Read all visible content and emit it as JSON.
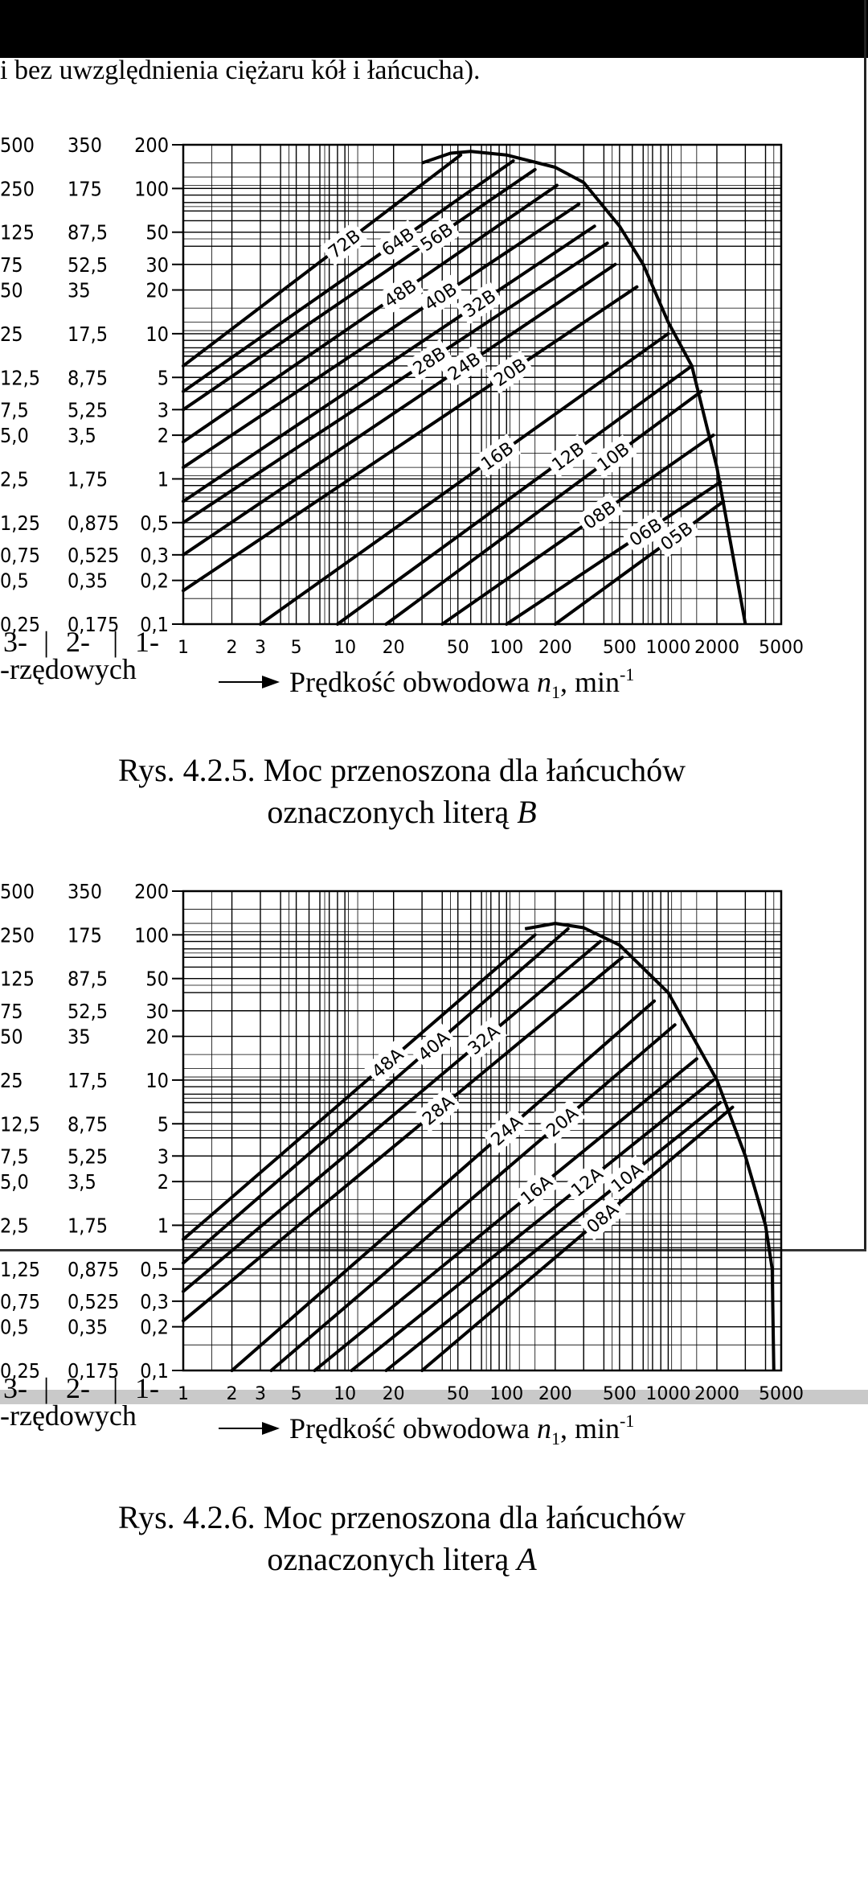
{
  "page": {
    "top_text": "i bez uwzględnienia ciężaru kół i łańcucha)."
  },
  "chart_data": [
    {
      "type": "line",
      "scale": "log-log",
      "caption_line1": "Rys. 4.2.5.  Moc przenoszona dla łańcuchów",
      "caption_line2": "oznaczonych literą ",
      "caption_letter": "B",
      "y_ticks": [
        {
          "v": 200,
          "r2": "350",
          "r3": "500",
          "r1": "200"
        },
        {
          "v": 100,
          "r2": "175",
          "r3": "250",
          "r1": "100"
        },
        {
          "v": 50,
          "r2": "87,5",
          "r3": "125",
          "r1": "50"
        },
        {
          "v": 30,
          "r2": "52,5",
          "r3": "75",
          "r1": "30"
        },
        {
          "v": 20,
          "r2": "35",
          "r3": "50",
          "r1": "20"
        },
        {
          "v": 10,
          "r2": "17,5",
          "r3": "25",
          "r1": "10"
        },
        {
          "v": 5,
          "r2": "8,75",
          "r3": "12,5",
          "r1": "5"
        },
        {
          "v": 3,
          "r2": "5,25",
          "r3": "7,5",
          "r1": "3"
        },
        {
          "v": 2,
          "r2": "3,5",
          "r3": "5,0",
          "r1": "2"
        },
        {
          "v": 1,
          "r2": "1,75",
          "r3": "2,5",
          "r1": "1"
        },
        {
          "v": 0.5,
          "r2": "0,875",
          "r3": "1,25",
          "r1": "0,5"
        },
        {
          "v": 0.3,
          "r2": "0,525",
          "r3": "0,75",
          "r1": "0,3"
        },
        {
          "v": 0.2,
          "r2": "0,35",
          "r3": "0,5",
          "r1": "0,2"
        },
        {
          "v": 0.1,
          "r2": "0,175",
          "r3": "0,25",
          "r1": "0,1"
        }
      ],
      "x_ticks": [
        {
          "v": 1,
          "label": "1"
        },
        {
          "v": 2,
          "label": "2"
        },
        {
          "v": 3,
          "label": "3"
        },
        {
          "v": 5,
          "label": "5"
        },
        {
          "v": 10,
          "label": "10"
        },
        {
          "v": 20,
          "label": "20"
        },
        {
          "v": 50,
          "label": "50"
        },
        {
          "v": 100,
          "label": "100"
        },
        {
          "v": 200,
          "label": "200"
        },
        {
          "v": 500,
          "label": "500"
        },
        {
          "v": 1000,
          "label": "1000"
        },
        {
          "v": 2000,
          "label": "2000"
        },
        {
          "v": 5000,
          "label": "5000"
        }
      ],
      "row_labels": {
        "r3": "3-",
        "r2": "2-",
        "r1": "1-",
        "sep": "|",
        "suffix": "-rzędowych"
      },
      "xlabel": "Prędkość obwodowa  ",
      "xlabel_symbol": "n",
      "xlabel_sub": "1",
      "xlabel_unit": ", min",
      "xlabel_exp": "-1",
      "xlim": [
        1,
        5000
      ],
      "ylim": [
        0.1,
        200
      ],
      "series": [
        {
          "name": "72B",
          "points": [
            [
              1,
              6.0
            ],
            [
              52,
              170
            ]
          ]
        },
        {
          "name": "64B",
          "points": [
            [
              1,
              4.0
            ],
            [
              110,
              155
            ]
          ]
        },
        {
          "name": "56B",
          "points": [
            [
              1,
              3.0
            ],
            [
              150,
              135
            ]
          ]
        },
        {
          "name": "48B",
          "points": [
            [
              1,
              1.8
            ],
            [
              205,
              105
            ]
          ]
        },
        {
          "name": "40B",
          "points": [
            [
              1,
              1.2
            ],
            [
              280,
              78
            ]
          ]
        },
        {
          "name": "32B",
          "points": [
            [
              1,
              0.7
            ],
            [
              350,
              55
            ]
          ]
        },
        {
          "name": "28B",
          "points": [
            [
              1,
              0.5
            ],
            [
              420,
              42
            ]
          ]
        },
        {
          "name": "24B",
          "points": [
            [
              1,
              0.3
            ],
            [
              470,
              30
            ]
          ]
        },
        {
          "name": "20B",
          "points": [
            [
              1,
              0.17
            ],
            [
              640,
              21
            ]
          ]
        },
        {
          "name": "16B",
          "points": [
            [
              3,
              0.1
            ],
            [
              1000,
              10
            ]
          ]
        },
        {
          "name": "12B",
          "points": [
            [
              9,
              0.1
            ],
            [
              1400,
              6.0
            ]
          ]
        },
        {
          "name": "10B",
          "points": [
            [
              18,
              0.1
            ],
            [
              1600,
              4.0
            ]
          ]
        },
        {
          "name": "08B",
          "points": [
            [
              40,
              0.1
            ],
            [
              1900,
              2.0
            ]
          ]
        },
        {
          "name": "06B",
          "points": [
            [
              100,
              0.1
            ],
            [
              2100,
              0.95
            ]
          ]
        },
        {
          "name": "05B",
          "points": [
            [
              200,
              0.1
            ],
            [
              2200,
              0.7
            ]
          ]
        }
      ],
      "envelope": [
        [
          30,
          150
        ],
        [
          45,
          175
        ],
        [
          60,
          180
        ],
        [
          100,
          170
        ],
        [
          200,
          140
        ],
        [
          300,
          110
        ],
        [
          500,
          55
        ],
        [
          700,
          30
        ],
        [
          1000,
          12
        ],
        [
          1400,
          6
        ],
        [
          2000,
          1.2
        ],
        [
          3000,
          0.1
        ]
      ]
    },
    {
      "type": "line",
      "scale": "log-log",
      "caption_line1": "Rys. 4.2.6.  Moc przenoszona dla łańcuchów",
      "caption_line2": "oznaczonych literą ",
      "caption_letter": "A",
      "y_ticks": [
        {
          "v": 200,
          "r2": "350",
          "r3": "500",
          "r1": "200"
        },
        {
          "v": 100,
          "r2": "175",
          "r3": "250",
          "r1": "100"
        },
        {
          "v": 50,
          "r2": "87,5",
          "r3": "125",
          "r1": "50"
        },
        {
          "v": 30,
          "r2": "52,5",
          "r3": "75",
          "r1": "30"
        },
        {
          "v": 20,
          "r2": "35",
          "r3": "50",
          "r1": "20"
        },
        {
          "v": 10,
          "r2": "17,5",
          "r3": "25",
          "r1": "10"
        },
        {
          "v": 5,
          "r2": "8,75",
          "r3": "12,5",
          "r1": "5"
        },
        {
          "v": 3,
          "r2": "5,25",
          "r3": "7,5",
          "r1": "3"
        },
        {
          "v": 2,
          "r2": "3,5",
          "r3": "5,0",
          "r1": "2"
        },
        {
          "v": 1,
          "r2": "1,75",
          "r3": "2,5",
          "r1": "1"
        },
        {
          "v": 0.5,
          "r2": "0,875",
          "r3": "1,25",
          "r1": "0,5"
        },
        {
          "v": 0.3,
          "r2": "0,525",
          "r3": "0,75",
          "r1": "0,3"
        },
        {
          "v": 0.2,
          "r2": "0,35",
          "r3": "0,5",
          "r1": "0,2"
        },
        {
          "v": 0.1,
          "r2": "0,175",
          "r3": "0,25",
          "r1": "0,1"
        }
      ],
      "x_ticks": [
        {
          "v": 1,
          "label": "1"
        },
        {
          "v": 2,
          "label": "2"
        },
        {
          "v": 3,
          "label": "3"
        },
        {
          "v": 5,
          "label": "5"
        },
        {
          "v": 10,
          "label": "10"
        },
        {
          "v": 20,
          "label": "20"
        },
        {
          "v": 50,
          "label": "50"
        },
        {
          "v": 100,
          "label": "100"
        },
        {
          "v": 200,
          "label": "200"
        },
        {
          "v": 500,
          "label": "500"
        },
        {
          "v": 1000,
          "label": "1000"
        },
        {
          "v": 2000,
          "label": "2000"
        },
        {
          "v": 5000,
          "label": "5000"
        }
      ],
      "row_labels": {
        "r3": "3-",
        "r2": "2-",
        "r1": "1-",
        "sep": "|",
        "suffix": "-rzędowych"
      },
      "xlabel": "Prędkość obwodowa  ",
      "xlabel_symbol": "n",
      "xlabel_sub": "1",
      "xlabel_unit": ", min",
      "xlabel_exp": "-1",
      "xlim": [
        1,
        5000
      ],
      "ylim": [
        0.1,
        200
      ],
      "series": [
        {
          "name": "48A",
          "points": [
            [
              1,
              0.8
            ],
            [
              150,
              100
            ]
          ]
        },
        {
          "name": "40A",
          "points": [
            [
              1,
              0.55
            ],
            [
              240,
              110
            ]
          ]
        },
        {
          "name": "32A",
          "points": [
            [
              1,
              0.35
            ],
            [
              380,
              90
            ]
          ]
        },
        {
          "name": "28A",
          "points": [
            [
              1,
              0.22
            ],
            [
              520,
              70
            ]
          ]
        },
        {
          "name": "24A",
          "points": [
            [
              2,
              0.1
            ],
            [
              820,
              35
            ]
          ]
        },
        {
          "name": "20A",
          "points": [
            [
              3.5,
              0.1
            ],
            [
              1100,
              24
            ]
          ]
        },
        {
          "name": "16A",
          "points": [
            [
              6.5,
              0.1
            ],
            [
              1500,
              14
            ]
          ]
        },
        {
          "name": "12A",
          "points": [
            [
              11,
              0.1
            ],
            [
              1900,
              10
            ]
          ]
        },
        {
          "name": "10A",
          "points": [
            [
              18,
              0.1
            ],
            [
              2100,
              7
            ]
          ]
        },
        {
          "name": "08A",
          "points": [
            [
              30,
              0.1
            ],
            [
              2500,
              6.5
            ]
          ]
        }
      ],
      "envelope": [
        [
          130,
          110
        ],
        [
          200,
          120
        ],
        [
          300,
          112
        ],
        [
          500,
          85
        ],
        [
          1000,
          40
        ],
        [
          2000,
          10
        ],
        [
          3000,
          3
        ],
        [
          4000,
          1
        ],
        [
          4400,
          0.5
        ],
        [
          4500,
          0.1
        ]
      ]
    }
  ]
}
